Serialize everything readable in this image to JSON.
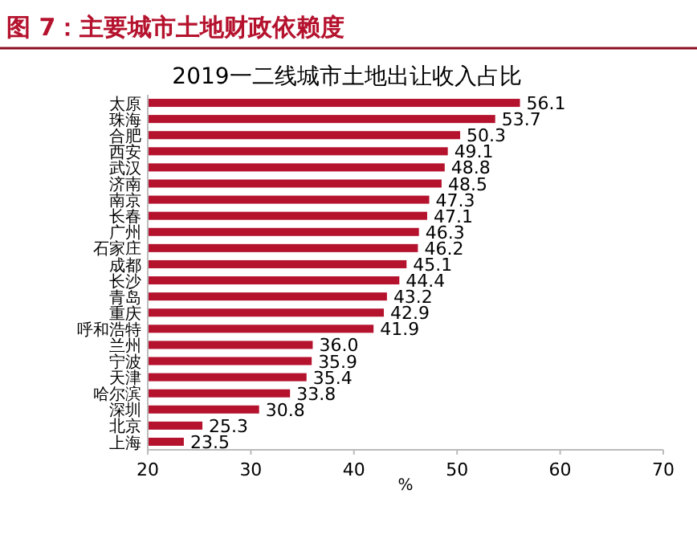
{
  "chart_data": {
    "type": "bar",
    "orientation": "horizontal",
    "title": "图 7：主要城市土地财政依赖度",
    "subtitle": "2019一二线城市土地出让收入占比",
    "xlabel": "%",
    "categories": [
      "太原",
      "珠海",
      "合肥",
      "西安",
      "武汉",
      "济南",
      "南京",
      "长春",
      "广州",
      "石家庄",
      "成都",
      "长沙",
      "青岛",
      "重庆",
      "呼和浩特",
      "兰州",
      "宁波",
      "天津",
      "哈尔滨",
      "深圳",
      "北京",
      "上海"
    ],
    "values": [
      56.1,
      53.7,
      50.3,
      49.1,
      48.8,
      48.5,
      47.3,
      47.1,
      46.3,
      46.2,
      45.1,
      44.4,
      43.2,
      42.9,
      41.9,
      36.0,
      35.9,
      35.4,
      33.8,
      30.8,
      25.3,
      23.5
    ],
    "value_labels": [
      "56.1",
      "53.7",
      "50.3",
      "49.1",
      "48.8",
      "48.5",
      "47.3",
      "47.1",
      "46.3",
      "46.2",
      "45.1",
      "44.4",
      "43.2",
      "42.9",
      "41.9",
      "36.0",
      "35.9",
      "35.4",
      "33.8",
      "30.8",
      "25.3",
      "23.5"
    ],
    "color": "#b5122e",
    "xlim": [
      20,
      70
    ],
    "xticks": [
      20,
      30,
      40,
      50,
      60,
      70
    ]
  }
}
